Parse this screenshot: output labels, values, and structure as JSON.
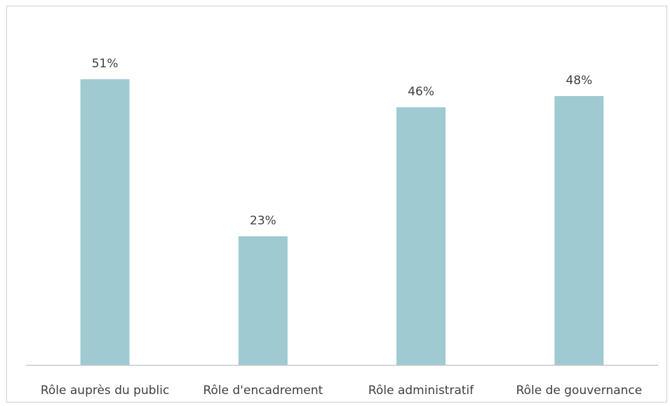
{
  "chart_data": {
    "type": "bar",
    "title": "",
    "xlabel": "",
    "ylabel": "",
    "categories": [
      "Rôle auprès du public",
      "Rôle d'encadrement",
      "Rôle administratif",
      "Rôle de gouvernance"
    ],
    "values": [
      51,
      23,
      46,
      48
    ],
    "value_labels": [
      "51%",
      "23%",
      "46%",
      "48%"
    ],
    "ylim": [
      0,
      55
    ],
    "grid": false,
    "legend": "none",
    "bar_color": "#9fcad1",
    "text_color": "#404040"
  }
}
